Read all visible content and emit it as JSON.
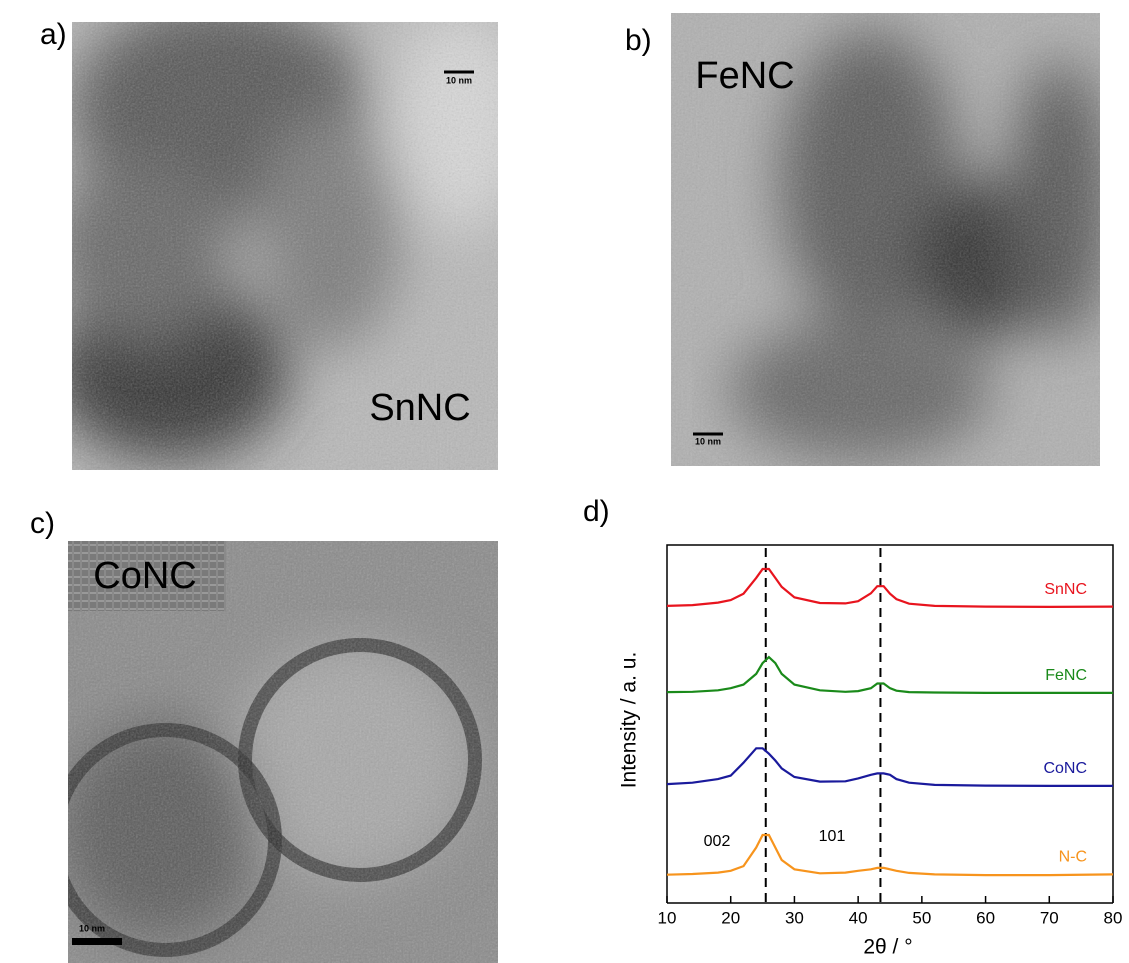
{
  "panels": [
    {
      "label": "a)",
      "sample": "SnNC",
      "scale_bar": "10 nm"
    },
    {
      "label": "b)",
      "sample": "FeNC",
      "scale_bar": "10 nm"
    },
    {
      "label": "c)",
      "sample": "CoNC",
      "scale_bar": "10 nm"
    }
  ],
  "chart_data": {
    "type": "line",
    "label": "d)",
    "xlabel": "2θ / °",
    "ylabel": "Intensity / a. u.",
    "x": [
      10,
      14,
      18,
      20,
      22,
      24,
      25,
      26,
      27,
      28,
      30,
      34,
      38,
      40,
      42,
      43,
      44,
      45,
      46,
      48,
      52,
      60,
      70,
      80
    ],
    "xlim": [
      10,
      80
    ],
    "xticks": [
      10,
      20,
      30,
      40,
      50,
      60,
      70,
      80
    ],
    "ylim": [
      0,
      100
    ],
    "vlines": [
      25.5,
      43.5
    ],
    "annotations": [
      "002",
      "101"
    ],
    "series": [
      {
        "name": "SnNC",
        "color": "#e8141e",
        "values": [
          83.0,
          83.2,
          83.9,
          84.6,
          86.4,
          90.8,
          93.3,
          93.3,
          90.8,
          88.3,
          85.4,
          83.8,
          83.7,
          84.3,
          86.5,
          88.5,
          88.5,
          86.4,
          84.9,
          83.6,
          83.0,
          82.8,
          82.7,
          82.8
        ]
      },
      {
        "name": "FeNC",
        "color": "#1a8a1a",
        "values": [
          58.9,
          59.0,
          59.4,
          60.0,
          61.0,
          64.0,
          67.0,
          68.7,
          67.0,
          64.0,
          61.0,
          59.4,
          59.0,
          59.2,
          60.0,
          61.3,
          61.3,
          60.0,
          59.3,
          58.9,
          58.8,
          58.7,
          58.7,
          58.7
        ]
      },
      {
        "name": "CoNC",
        "color": "#1a1a9c",
        "values": [
          33.2,
          33.6,
          34.6,
          35.6,
          39.2,
          43.2,
          43.2,
          41.7,
          39.8,
          37.6,
          35.2,
          33.9,
          34.0,
          34.8,
          35.8,
          36.2,
          36.2,
          35.8,
          34.6,
          33.6,
          33.0,
          32.8,
          32.7,
          32.7
        ]
      },
      {
        "name": "N-C",
        "color": "#f7941d",
        "values": [
          7.9,
          8.1,
          8.5,
          9.0,
          10.3,
          15.5,
          19.0,
          19.0,
          15.5,
          12.0,
          9.4,
          8.3,
          8.5,
          9.0,
          9.4,
          9.8,
          9.8,
          9.4,
          9.0,
          8.4,
          8.0,
          7.8,
          7.8,
          8.0
        ]
      }
    ]
  }
}
